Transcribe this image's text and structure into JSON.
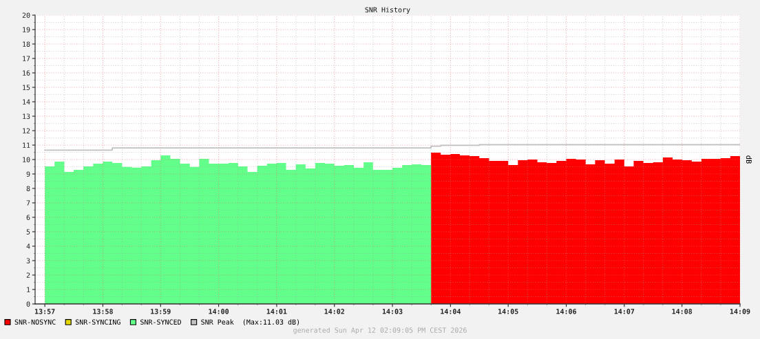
{
  "chart_data": {
    "type": "area",
    "title": "SNR History",
    "ylabel": "dB",
    "x": [
      13.95,
      13.9528,
      13.9556,
      13.9583,
      13.9611,
      13.9639,
      13.9667,
      13.9694,
      13.9722,
      13.975,
      13.9778,
      13.9806,
      13.9833,
      13.9861,
      13.9889,
      13.9917,
      13.9944,
      13.9972,
      14.0,
      14.0028,
      14.0056,
      14.0083,
      14.0111,
      14.0139,
      14.0167,
      14.0194,
      14.0222,
      14.025,
      14.0278,
      14.0306,
      14.0333,
      14.0361,
      14.0389,
      14.0417,
      14.0444,
      14.0472,
      14.05,
      14.0528,
      14.0556,
      14.0583,
      14.0611,
      14.0639,
      14.0667,
      14.0694,
      14.0722,
      14.075,
      14.0778,
      14.0806,
      14.0833,
      14.0861,
      14.0889,
      14.0917,
      14.0944,
      14.0972,
      14.1,
      14.1028,
      14.1056,
      14.1083,
      14.1111,
      14.1139,
      14.1167,
      14.1194,
      14.1222,
      14.125,
      14.1278,
      14.1306,
      14.1333,
      14.1361,
      14.1389,
      14.1417,
      14.1444,
      14.1472,
      14.15
    ],
    "series": [
      {
        "name": "SNR-NOSYNC",
        "color": "#ff0000",
        "values": [
          null,
          null,
          null,
          null,
          null,
          null,
          null,
          null,
          null,
          null,
          null,
          null,
          null,
          null,
          null,
          null,
          null,
          null,
          null,
          null,
          null,
          null,
          null,
          null,
          null,
          null,
          null,
          null,
          null,
          null,
          null,
          null,
          null,
          null,
          null,
          null,
          null,
          null,
          null,
          null,
          10.48,
          10.33,
          10.38,
          10.29,
          10.24,
          10.1,
          9.9,
          9.9,
          9.62,
          9.95,
          10.0,
          9.81,
          9.76,
          9.9,
          10.05,
          10.0,
          9.67,
          9.95,
          9.71,
          10.0,
          9.52,
          9.9,
          9.76,
          9.81,
          10.14,
          10.0,
          9.95,
          9.86,
          10.05,
          10.05,
          10.1,
          10.24,
          10.24
        ]
      },
      {
        "name": "SNR-SYNCING",
        "color": "#e6d800",
        "values": [
          null,
          null,
          null,
          null,
          null,
          null,
          null,
          null,
          null,
          null,
          null,
          null,
          null,
          null,
          null,
          null,
          null,
          null,
          null,
          null,
          null,
          null,
          null,
          null,
          null,
          null,
          null,
          null,
          null,
          null,
          null,
          null,
          null,
          null,
          null,
          null,
          null,
          null,
          null,
          null,
          null,
          null,
          null,
          null,
          null,
          null,
          null,
          null,
          null,
          null,
          null,
          null,
          null,
          null,
          null,
          null,
          null,
          null,
          null,
          null,
          null,
          null,
          null,
          null,
          null,
          null,
          null,
          null,
          null,
          null,
          null,
          null,
          null
        ]
      },
      {
        "name": "SNR-SYNCED",
        "color": "#62ff8a",
        "values": [
          9.52,
          9.86,
          9.14,
          9.29,
          9.52,
          9.71,
          9.86,
          9.76,
          9.49,
          9.44,
          9.52,
          9.95,
          10.29,
          10.05,
          9.71,
          9.49,
          10.05,
          9.71,
          9.71,
          9.76,
          9.52,
          9.14,
          9.57,
          9.71,
          9.76,
          9.29,
          9.67,
          9.38,
          9.76,
          9.71,
          9.57,
          9.62,
          9.43,
          9.81,
          9.29,
          9.29,
          9.43,
          9.62,
          9.67,
          9.62,
          9.62,
          null,
          null,
          null,
          null,
          null,
          null,
          null,
          null,
          null,
          null,
          null,
          null,
          null,
          null,
          null,
          null,
          null,
          null,
          null,
          null,
          null,
          null,
          null,
          null,
          null,
          null,
          null,
          null,
          null,
          null,
          null,
          null
        ]
      },
      {
        "name": "SNR Peak  (Max:11.03 dB)",
        "type": "step",
        "color": "#c0c0c0",
        "x": [
          13.95,
          13.9694,
          14.0611,
          14.0639,
          14.075,
          14.15
        ],
        "values": [
          10.65,
          10.8,
          10.92,
          10.98,
          11.03,
          11.03
        ]
      }
    ],
    "xlim": [
      13.9472,
      14.15
    ],
    "xticks": [
      {
        "value": 13.95,
        "label": "13:57"
      },
      {
        "value": 13.9667,
        "label": "13:58"
      },
      {
        "value": 13.9833,
        "label": "13:59"
      },
      {
        "value": 14.0,
        "label": "14:00"
      },
      {
        "value": 14.0167,
        "label": "14:01"
      },
      {
        "value": 14.0333,
        "label": "14:02"
      },
      {
        "value": 14.05,
        "label": "14:03"
      },
      {
        "value": 14.0667,
        "label": "14:04"
      },
      {
        "value": 14.0833,
        "label": "14:05"
      },
      {
        "value": 14.1,
        "label": "14:06"
      },
      {
        "value": 14.1167,
        "label": "14:07"
      },
      {
        "value": 14.1333,
        "label": "14:08"
      },
      {
        "value": 14.15,
        "label": "14:09"
      }
    ],
    "ylim": [
      0,
      20
    ],
    "yticks": [
      0,
      1,
      2,
      3,
      4,
      5,
      6,
      7,
      8,
      9,
      10,
      11,
      12,
      13,
      14,
      15,
      16,
      17,
      18,
      19,
      20
    ],
    "grid": true,
    "legend": "bottom",
    "annotations": [
      "generated Sun Apr 12 02:09:05 PM CEST 2026"
    ]
  }
}
